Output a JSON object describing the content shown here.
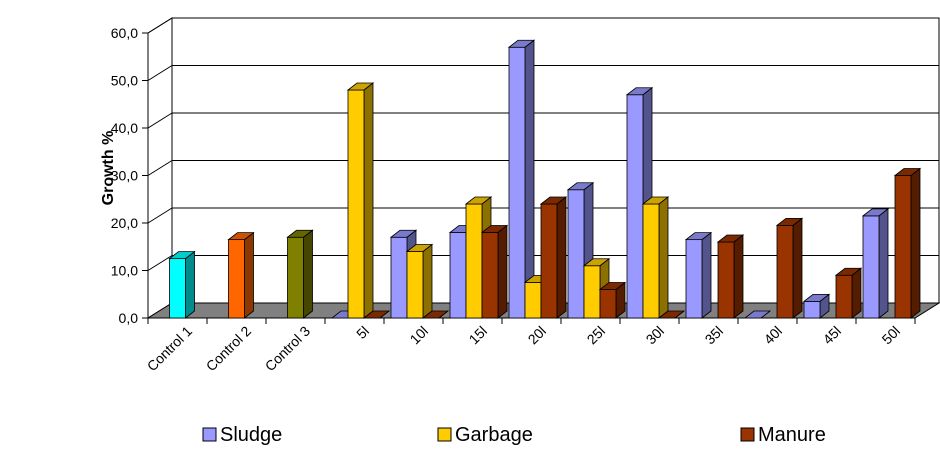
{
  "chart_data": {
    "type": "bar",
    "ylabel": "Growth %",
    "xlabel": "",
    "ylim": [
      0,
      60
    ],
    "ytick_step": 10,
    "ytick_labels": [
      "0,0",
      "10,0",
      "20,0",
      "30,0",
      "40,0",
      "50,0",
      "60,0"
    ],
    "grid": true,
    "legend_position": "bottom",
    "categories": [
      "Control 1",
      "Control 2",
      "Control 3",
      "5l",
      "10l",
      "15l",
      "20l",
      "25l",
      "30l",
      "35l",
      "40l",
      "45l",
      "50l"
    ],
    "controls": [
      {
        "category": "Control 1",
        "value": 12.5,
        "color": "#00FFFF"
      },
      {
        "category": "Control 2",
        "value": 16.5,
        "color": "#FF6600"
      },
      {
        "category": "Control 3",
        "value": 17.0,
        "color": "#808000"
      }
    ],
    "series": [
      {
        "name": "Sludge",
        "color": "#9999FF",
        "values": [
          null,
          null,
          null,
          0.0,
          17.0,
          18.0,
          57.0,
          27.0,
          47.0,
          16.5,
          0.0,
          3.5,
          21.5
        ]
      },
      {
        "name": "Garbage",
        "color": "#FFCC00",
        "values": [
          null,
          null,
          null,
          48.0,
          14.0,
          24.0,
          7.5,
          11.0,
          24.0,
          null,
          null,
          null,
          null
        ]
      },
      {
        "name": "Manure",
        "color": "#993300",
        "values": [
          null,
          null,
          null,
          0.0,
          0.0,
          18.0,
          24.0,
          6.0,
          0.0,
          16.0,
          19.5,
          9.0,
          30.0
        ]
      }
    ]
  }
}
